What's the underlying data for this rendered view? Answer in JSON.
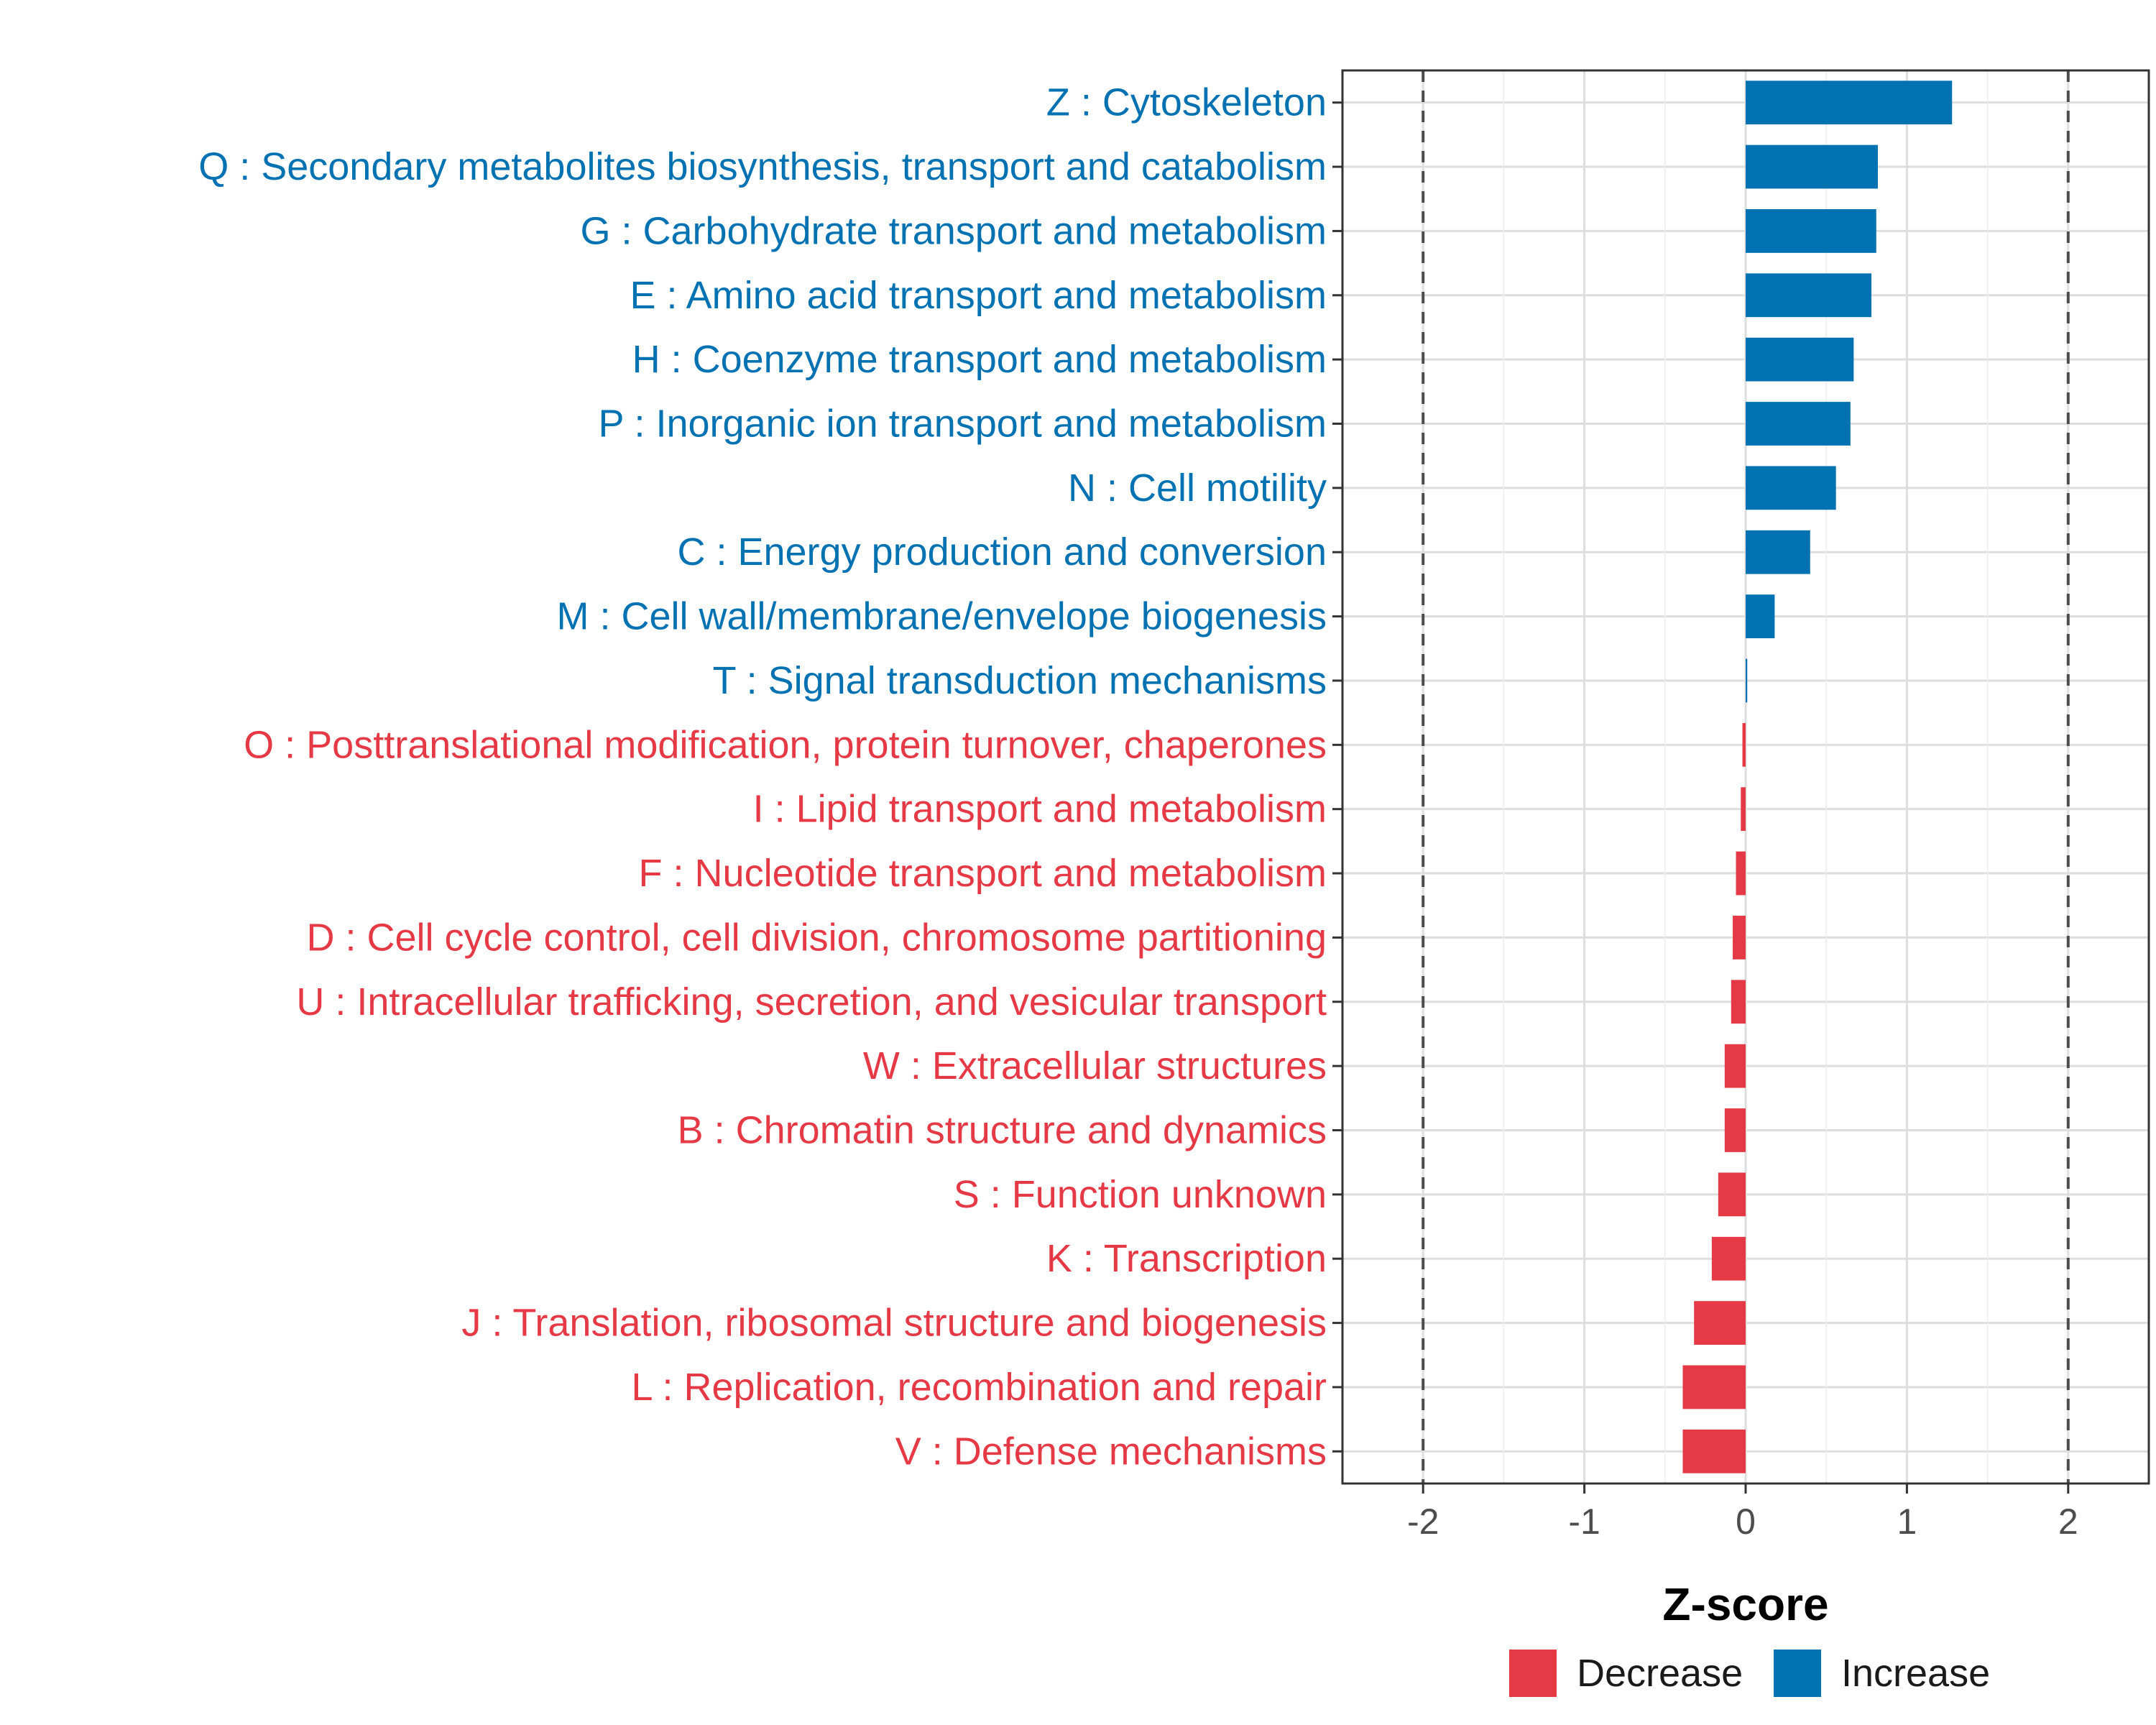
{
  "chart_data": {
    "type": "bar",
    "orientation": "horizontal",
    "title": "",
    "xlabel": "Z-score",
    "ylabel": "",
    "xlim": [
      -2.5,
      2.5
    ],
    "x_ticks": [
      -2,
      -1,
      0,
      1,
      2
    ],
    "x_tick_labels": [
      "-2",
      "-1",
      "0",
      "1",
      "2"
    ],
    "reference_lines": [
      -2,
      2
    ],
    "grid": true,
    "colors": {
      "Increase": "#0072b2",
      "Decrease": "#e63946"
    },
    "categories": [
      "Z : Cytoskeleton",
      "Q : Secondary metabolites biosynthesis, transport and catabolism",
      "G : Carbohydrate transport and metabolism",
      "E : Amino acid transport and metabolism",
      "H : Coenzyme transport and metabolism",
      "P : Inorganic ion transport and metabolism",
      "N : Cell motility",
      "C : Energy production and conversion",
      "M : Cell wall/membrane/envelope biogenesis",
      "T : Signal transduction mechanisms",
      "O : Posttranslational modification, protein turnover, chaperones",
      "I : Lipid transport and metabolism",
      "F : Nucleotide transport and metabolism",
      "D : Cell cycle control, cell division, chromosome partitioning",
      "U : Intracellular trafficking, secretion, and vesicular transport",
      "W : Extracellular structures",
      "B : Chromatin structure and dynamics",
      "S : Function unknown",
      "K : Transcription",
      "J : Translation, ribosomal structure and biogenesis",
      "L : Replication, recombination and repair",
      "V : Defense mechanisms"
    ],
    "values": [
      1.28,
      0.82,
      0.81,
      0.78,
      0.67,
      0.65,
      0.56,
      0.4,
      0.18,
      0.01,
      -0.02,
      -0.03,
      -0.06,
      -0.08,
      -0.09,
      -0.13,
      -0.13,
      -0.17,
      -0.21,
      -0.32,
      -0.39,
      -0.39
    ],
    "groups": [
      "Increase",
      "Increase",
      "Increase",
      "Increase",
      "Increase",
      "Increase",
      "Increase",
      "Increase",
      "Increase",
      "Increase",
      "Decrease",
      "Decrease",
      "Decrease",
      "Decrease",
      "Decrease",
      "Decrease",
      "Decrease",
      "Decrease",
      "Decrease",
      "Decrease",
      "Decrease",
      "Decrease"
    ],
    "legend": {
      "position": "bottom",
      "entries": [
        {
          "label": "Decrease",
          "color": "#e63946"
        },
        {
          "label": "Increase",
          "color": "#0072b2"
        }
      ]
    }
  }
}
